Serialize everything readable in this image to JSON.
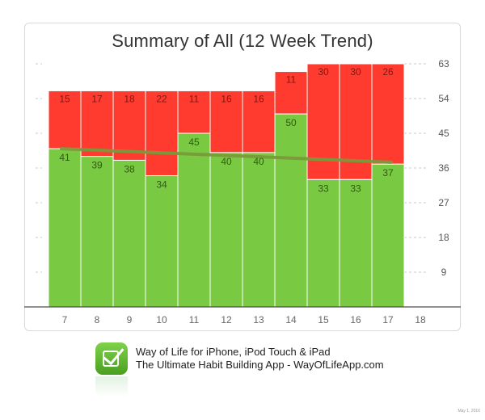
{
  "chart_data": {
    "type": "bar",
    "title": "Summary of All (12 Week Trend)",
    "categories": [
      "7",
      "8",
      "9",
      "10",
      "11",
      "12",
      "13",
      "14",
      "15",
      "16",
      "17"
    ],
    "x_tick_labels": [
      "7",
      "8",
      "9",
      "10",
      "11",
      "12",
      "13",
      "14",
      "15",
      "16",
      "17",
      "18"
    ],
    "series": [
      {
        "values": [
          41,
          39,
          38,
          34,
          45,
          40,
          40,
          50,
          33,
          33,
          37
        ],
        "color": "#7ac943"
      },
      {
        "values": [
          15,
          17,
          18,
          22,
          11,
          16,
          16,
          11,
          30,
          30,
          26
        ],
        "color": "#ff3b30"
      }
    ],
    "stacked": true,
    "trend_line": {
      "start": 41,
      "end": 37.5,
      "color": "#7a9a3a"
    },
    "ylim": [
      0,
      63
    ],
    "y_ticks": [
      9,
      18,
      27,
      36,
      45,
      54,
      63
    ],
    "axis_side": "right",
    "grid": true
  },
  "footer": {
    "line1": "Way of Life for iPhone, iPod Touch & iPad",
    "line2": "The Ultimate Habit Building App - WayOfLifeApp.com"
  },
  "date_stamp": "May 1, 2016"
}
